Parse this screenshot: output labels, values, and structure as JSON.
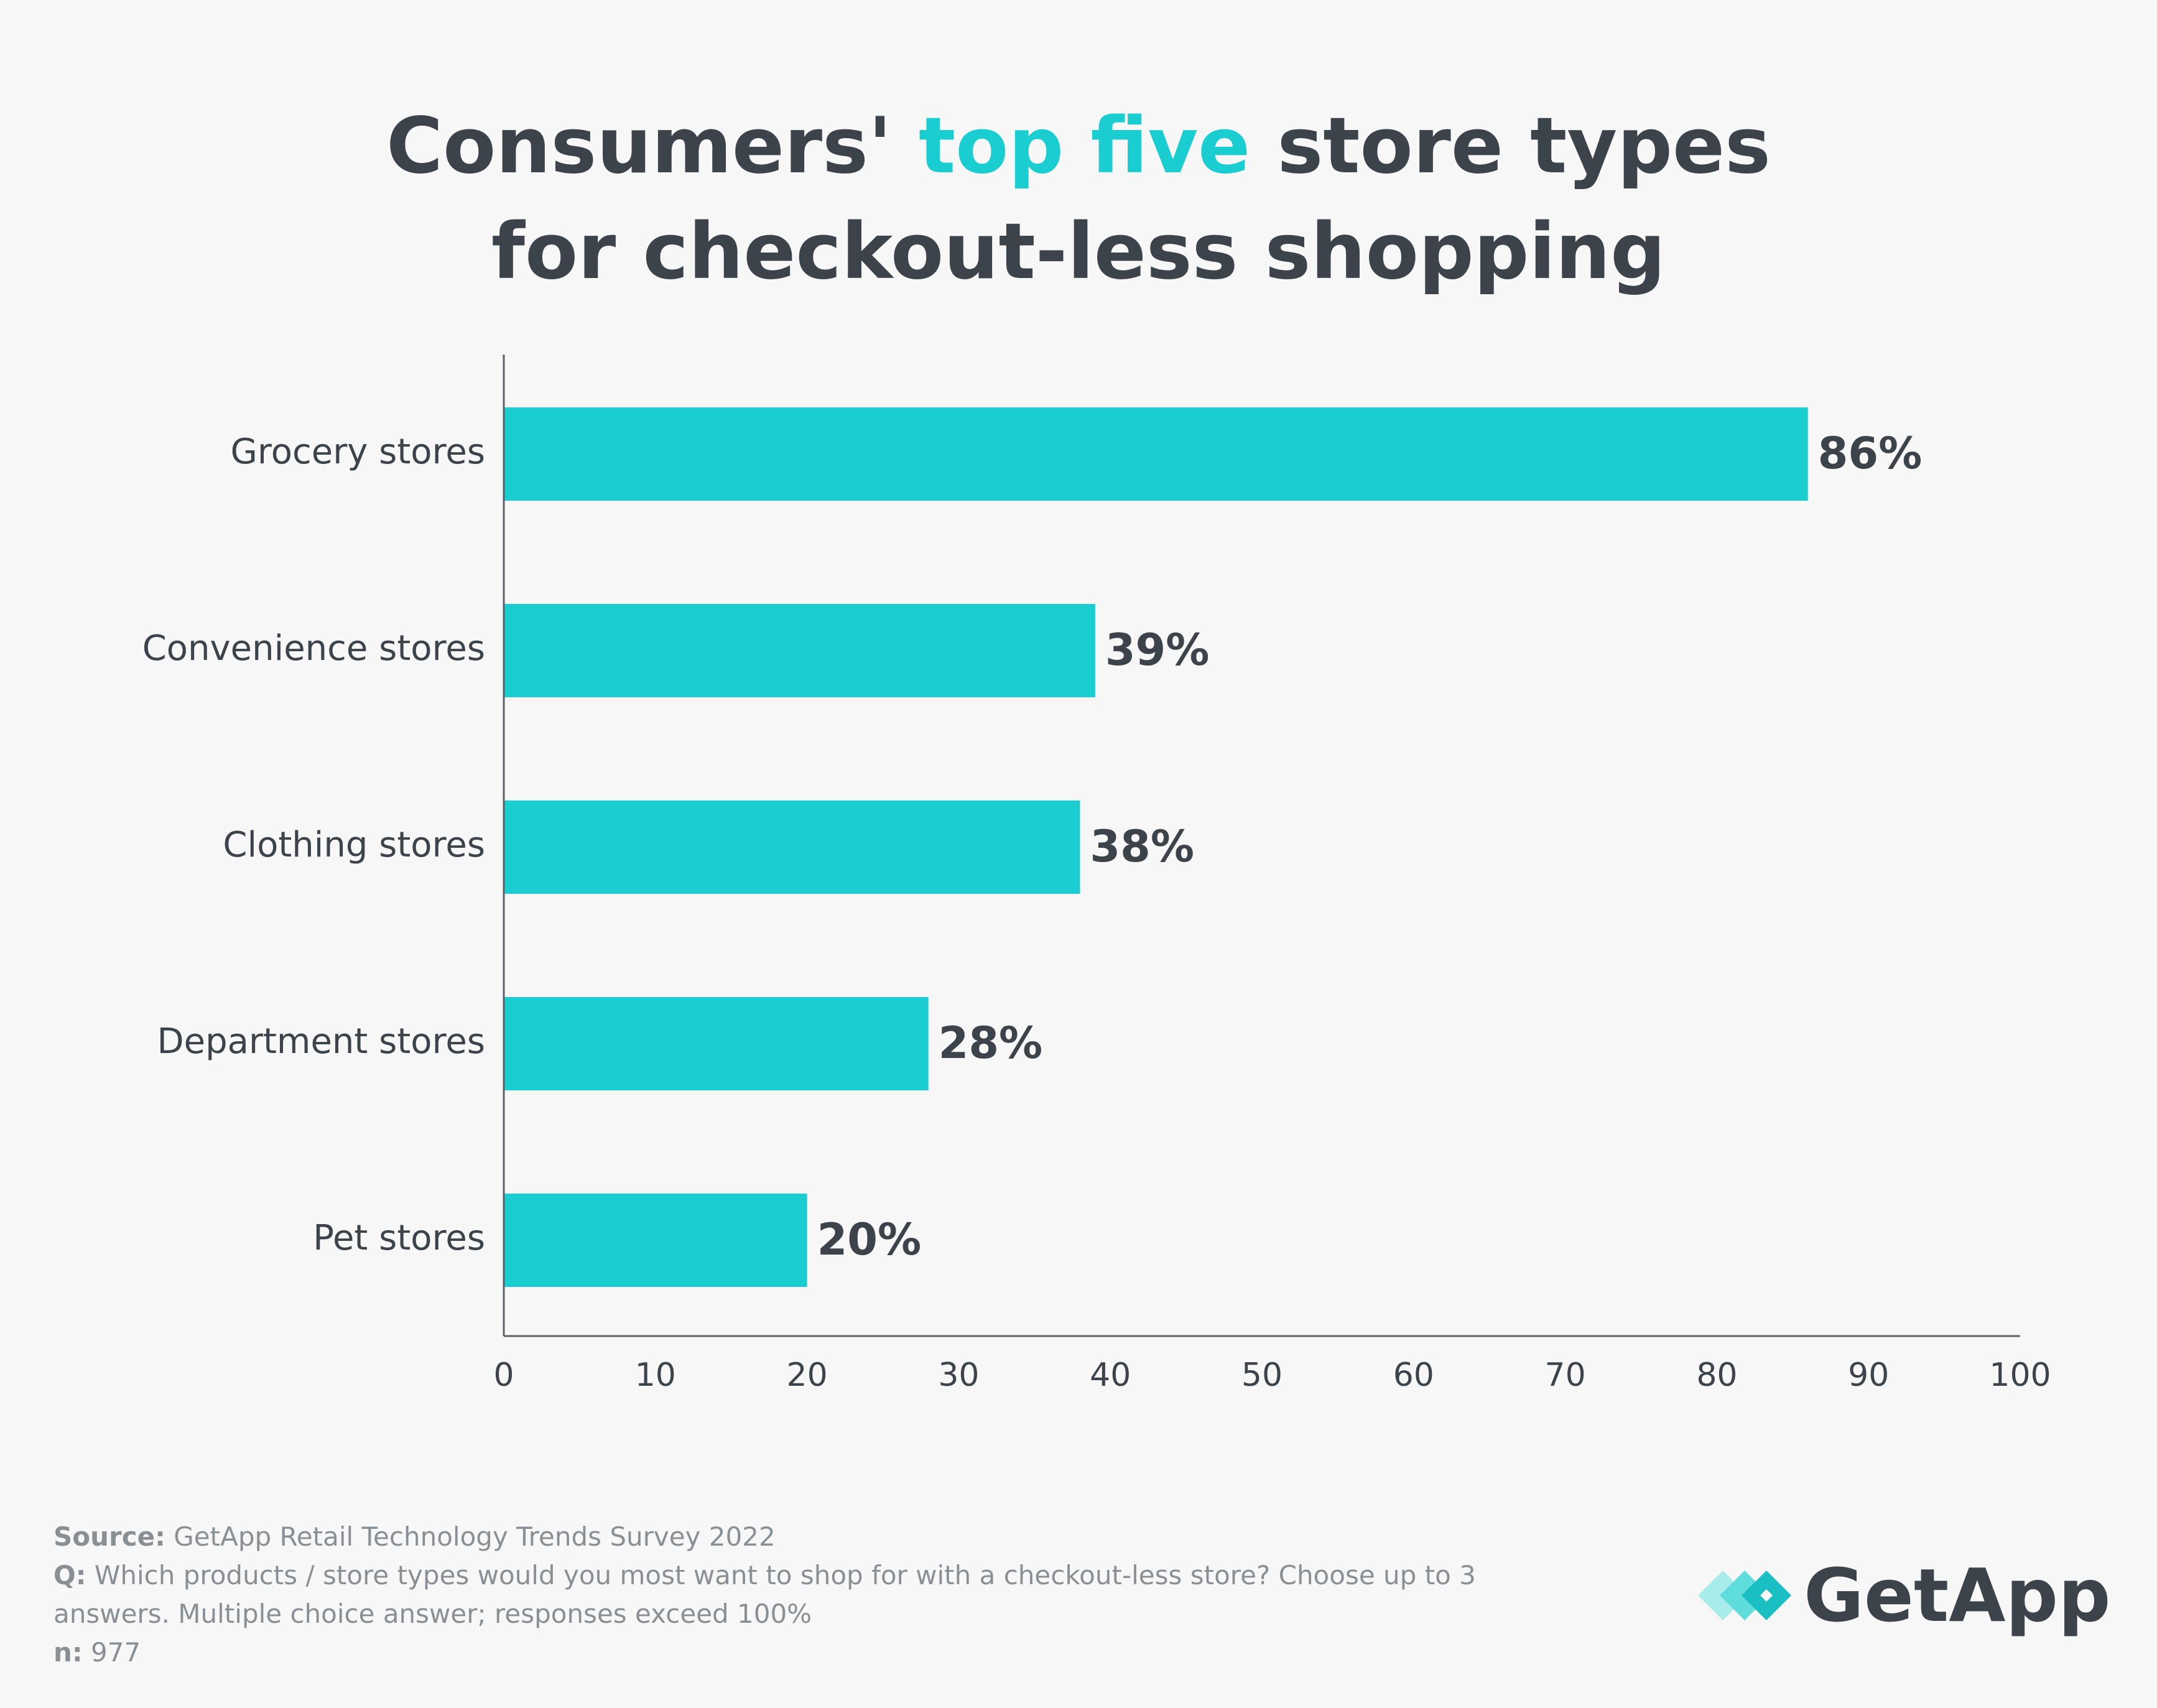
{
  "title": {
    "part1": "Consumers' ",
    "highlight": "top five",
    "part2": " store types",
    "line2": "for checkout-less shopping"
  },
  "chart_data": {
    "type": "bar",
    "orientation": "horizontal",
    "categories": [
      "Grocery stores",
      "Convenience stores",
      "Clothing stores",
      "Department stores",
      "Pet stores"
    ],
    "values": [
      86,
      39,
      38,
      28,
      20
    ],
    "value_labels": [
      "86%",
      "39%",
      "38%",
      "28%",
      "20%"
    ],
    "xlim": [
      0,
      100
    ],
    "xticks": [
      0,
      10,
      20,
      30,
      40,
      50,
      60,
      70,
      80,
      90,
      100
    ],
    "grid": false,
    "bar_color": "#19cdd0"
  },
  "footer": {
    "source_label": "Source:",
    "source_text": " GetApp Retail Technology Trends Survey 2022",
    "q_label": "Q:",
    "q_text": " Which products / store types would you most want to shop for with a checkout-less store? Choose up to 3 answers. Multiple choice answer; responses exceed 100%",
    "n_label": "n:",
    "n_text": " 977"
  },
  "logo": {
    "text": "GetApp",
    "icon": "getapp-diamond-logo-icon"
  },
  "colors": {
    "accent": "#19cdd0",
    "text": "#3c434b",
    "muted": "#8a8f94",
    "background": "#f7f7f7"
  }
}
